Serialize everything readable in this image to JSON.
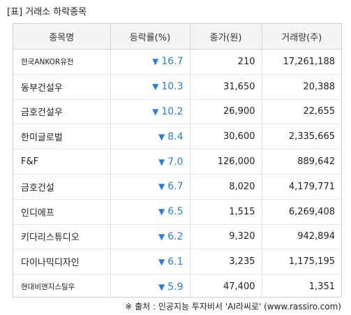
{
  "header": {
    "title": "[표] 거래소 하락종목"
  },
  "table": {
    "columns": [
      "종목명",
      "등락률(%)",
      "종가(원)",
      "거래량(주)"
    ],
    "down_icon": "down-triangle",
    "rows": [
      {
        "name": "한국ANKOR유전",
        "change": "16.7",
        "price": "210",
        "volume": "17,261,188"
      },
      {
        "name": "동부건설우",
        "change": "10.3",
        "price": "31,650",
        "volume": "20,388"
      },
      {
        "name": "금호건설우",
        "change": "10.2",
        "price": "26,900",
        "volume": "22,655"
      },
      {
        "name": "한미글로벌",
        "change": "8.4",
        "price": "30,600",
        "volume": "2,335,665"
      },
      {
        "name": "F&F",
        "change": "7.0",
        "price": "126,000",
        "volume": "889,642"
      },
      {
        "name": "금호건설",
        "change": "6.7",
        "price": "8,020",
        "volume": "4,179,771"
      },
      {
        "name": "인디에프",
        "change": "6.5",
        "price": "1,515",
        "volume": "6,269,408"
      },
      {
        "name": "키다리스튜디오",
        "change": "6.2",
        "price": "9,320",
        "volume": "942,894"
      },
      {
        "name": "다이나믹디자인",
        "change": "6.1",
        "price": "3,235",
        "volume": "1,175,195"
      },
      {
        "name": "현대비앤지스틸우",
        "change": "5.9",
        "price": "47,400",
        "volume": "1,351"
      }
    ]
  },
  "footer": {
    "source": "※ 출처 : 인공지능 투자비서 'AI라씨로' (www.rassiro.com)"
  },
  "colors": {
    "down": "#2b7fd3",
    "header_bg": "#f4f4f4",
    "border": "#cfcfcf"
  }
}
